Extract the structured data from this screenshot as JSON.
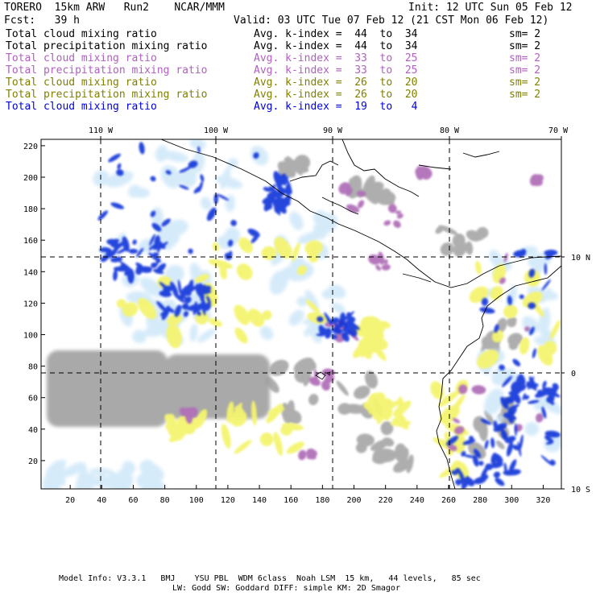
{
  "header": {
    "model": "TORERO  15km ARW   Run2    NCAR/MMM",
    "init": "Init: 12 UTC Sun 05 Feb 12",
    "fcst": "Fcst:   39 h",
    "valid": "Valid: 03 UTC Tue 07 Feb 12 (21 CST Mon 06 Feb 12)"
  },
  "legend": [
    {
      "field": "Total cloud mixing ratio",
      "kindex": "Avg. k-index =  44  to  34",
      "sm": "sm= 2",
      "color": "#000000"
    },
    {
      "field": "Total precipitation mixing ratio",
      "kindex": "Avg. k-index =  44  to  34",
      "sm": "sm= 2",
      "color": "#000000"
    },
    {
      "field": "Total cloud mixing ratio",
      "kindex": "Avg. k-index =  33  to  25",
      "sm": "sm= 2",
      "color": "#b060c0"
    },
    {
      "field": "Total precipitation mixing ratio",
      "kindex": "Avg. k-index =  33  to  25",
      "sm": "sm= 2",
      "color": "#b060c0"
    },
    {
      "field": "Total cloud mixing ratio",
      "kindex": "Avg. k-index =  26  to  20",
      "sm": "sm= 2",
      "color": "#808000"
    },
    {
      "field": "Total precipitation mixing ratio",
      "kindex": "Avg. k-index =  26  to  20",
      "sm": "sm= 2",
      "color": "#808000"
    },
    {
      "field": "Total cloud mixing ratio",
      "kindex": "Avg. k-index =  19  to   4",
      "sm": "",
      "color": "#0000e0"
    }
  ],
  "map": {
    "top_lon_labels": [
      "110 W",
      "100 W",
      "90 W",
      "80 W",
      "70 W"
    ],
    "right_lat_labels": [
      "10 N",
      "0",
      "10 S"
    ],
    "x_ticks": [
      "20",
      "40",
      "60",
      "80",
      "100",
      "120",
      "140",
      "160",
      "180",
      "200",
      "220",
      "240",
      "260",
      "280",
      "300",
      "320"
    ],
    "y_ticks": [
      "20",
      "40",
      "60",
      "80",
      "100",
      "120",
      "140",
      "160",
      "180",
      "200",
      "220"
    ],
    "colors": {
      "gray": "#a0a0a0",
      "yellow": "#f4f470",
      "purple": "#b070b8",
      "blue": "#1030d8",
      "lightblue": "#c8e4f8"
    }
  },
  "footer": {
    "line1": "Model Info: V3.3.1   BMJ    YSU PBL  WDM 6class  Noah LSM  15 km,   44 levels,   85 sec",
    "line2": "LW: Godd SW: Goddard DIFF: simple KM: 2D Smagor"
  }
}
